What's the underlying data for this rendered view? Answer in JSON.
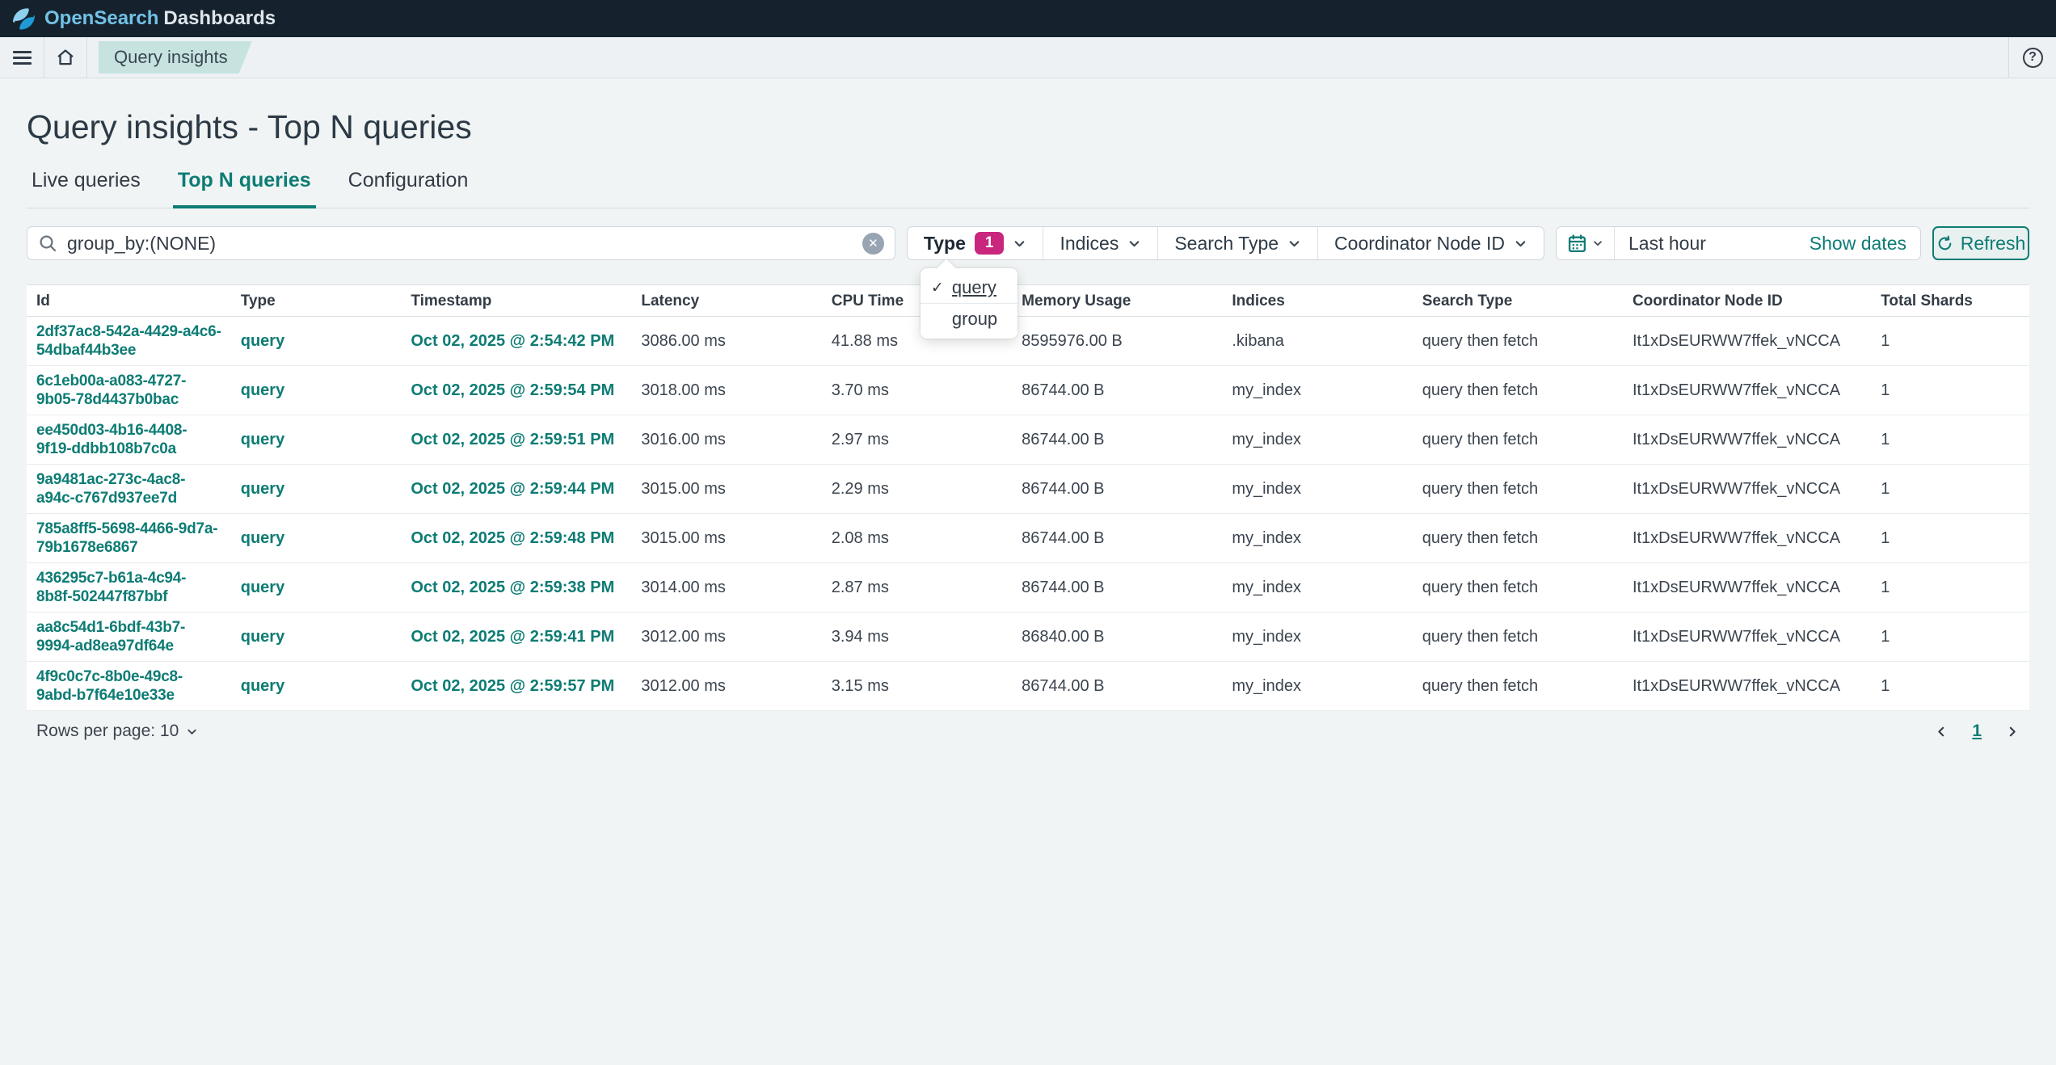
{
  "app": {
    "brand_primary": "OpenSearch",
    "brand_secondary": "Dashboards"
  },
  "breadcrumb": {
    "current": "Query insights"
  },
  "page": {
    "title": "Query insights - Top N queries"
  },
  "tabs": [
    {
      "label": "Live queries",
      "active": false
    },
    {
      "label": "Top N queries",
      "active": true
    },
    {
      "label": "Configuration",
      "active": false
    }
  ],
  "search": {
    "value": "group_by:(NONE)"
  },
  "filters": [
    {
      "label": "Type",
      "count": "1"
    },
    {
      "label": "Indices"
    },
    {
      "label": "Search Type"
    },
    {
      "label": "Coordinator Node ID"
    }
  ],
  "type_dropdown": {
    "options": [
      {
        "label": "query",
        "checked": true
      },
      {
        "label": "group",
        "checked": false
      }
    ]
  },
  "datepicker": {
    "value": "Last hour",
    "show_dates_label": "Show dates",
    "refresh_label": "Refresh"
  },
  "table": {
    "columns": [
      "Id",
      "Type",
      "Timestamp",
      "Latency",
      "CPU Time",
      "Memory Usage",
      "Indices",
      "Search Type",
      "Coordinator Node ID",
      "Total Shards"
    ],
    "rows": [
      {
        "id": "2df37ac8-542a-4429-a4c6-54dbaf44b3ee",
        "type": "query",
        "timestamp": "Oct 02, 2025 @ 2:54:42 PM",
        "latency": "3086.00 ms",
        "cpu_time": "41.88 ms",
        "memory": "8595976.00 B",
        "indices": ".kibana",
        "search_type": "query then fetch",
        "coordinator": "It1xDsEURWW7ffek_vNCCA",
        "total_shards": "1"
      },
      {
        "id": "6c1eb00a-a083-4727-9b05-78d4437b0bac",
        "type": "query",
        "timestamp": "Oct 02, 2025 @ 2:59:54 PM",
        "latency": "3018.00 ms",
        "cpu_time": "3.70 ms",
        "memory": "86744.00 B",
        "indices": "my_index",
        "search_type": "query then fetch",
        "coordinator": "It1xDsEURWW7ffek_vNCCA",
        "total_shards": "1"
      },
      {
        "id": "ee450d03-4b16-4408-9f19-ddbb108b7c0a",
        "type": "query",
        "timestamp": "Oct 02, 2025 @ 2:59:51 PM",
        "latency": "3016.00 ms",
        "cpu_time": "2.97 ms",
        "memory": "86744.00 B",
        "indices": "my_index",
        "search_type": "query then fetch",
        "coordinator": "It1xDsEURWW7ffek_vNCCA",
        "total_shards": "1"
      },
      {
        "id": "9a9481ac-273c-4ac8-a94c-c767d937ee7d",
        "type": "query",
        "timestamp": "Oct 02, 2025 @ 2:59:44 PM",
        "latency": "3015.00 ms",
        "cpu_time": "2.29 ms",
        "memory": "86744.00 B",
        "indices": "my_index",
        "search_type": "query then fetch",
        "coordinator": "It1xDsEURWW7ffek_vNCCA",
        "total_shards": "1"
      },
      {
        "id": "785a8ff5-5698-4466-9d7a-79b1678e6867",
        "type": "query",
        "timestamp": "Oct 02, 2025 @ 2:59:48 PM",
        "latency": "3015.00 ms",
        "cpu_time": "2.08 ms",
        "memory": "86744.00 B",
        "indices": "my_index",
        "search_type": "query then fetch",
        "coordinator": "It1xDsEURWW7ffek_vNCCA",
        "total_shards": "1"
      },
      {
        "id": "436295c7-b61a-4c94-8b8f-502447f87bbf",
        "type": "query",
        "timestamp": "Oct 02, 2025 @ 2:59:38 PM",
        "latency": "3014.00 ms",
        "cpu_time": "2.87 ms",
        "memory": "86744.00 B",
        "indices": "my_index",
        "search_type": "query then fetch",
        "coordinator": "It1xDsEURWW7ffek_vNCCA",
        "total_shards": "1"
      },
      {
        "id": "aa8c54d1-6bdf-43b7-9994-ad8ea97df64e",
        "type": "query",
        "timestamp": "Oct 02, 2025 @ 2:59:41 PM",
        "latency": "3012.00 ms",
        "cpu_time": "3.94 ms",
        "memory": "86840.00 B",
        "indices": "my_index",
        "search_type": "query then fetch",
        "coordinator": "It1xDsEURWW7ffek_vNCCA",
        "total_shards": "1"
      },
      {
        "id": "4f9c0c7c-8b0e-49c8-9abd-b7f64e10e33e",
        "type": "query",
        "timestamp": "Oct 02, 2025 @ 2:59:57 PM",
        "latency": "3012.00 ms",
        "cpu_time": "3.15 ms",
        "memory": "86744.00 B",
        "indices": "my_index",
        "search_type": "query then fetch",
        "coordinator": "It1xDsEURWW7ffek_vNCCA",
        "total_shards": "1"
      }
    ]
  },
  "pagination": {
    "rows_per_page_label": "Rows per page: 10",
    "page": "1"
  },
  "colors": {
    "accent_teal": "#0d7c74",
    "badge_pink": "#c9267d",
    "header_bg": "#15222d",
    "crumb_badge_bg": "#c6e3e0"
  }
}
